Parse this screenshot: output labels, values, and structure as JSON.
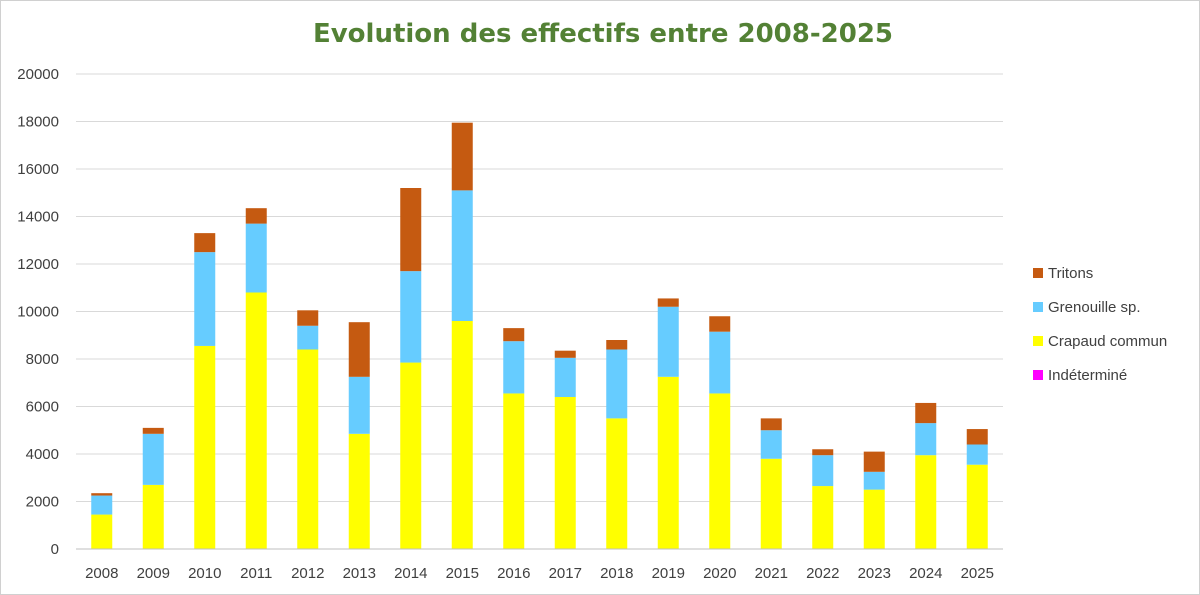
{
  "chart_data": {
    "type": "bar",
    "stacked": true,
    "title": "Evolution des effectifs entre 2008-2025",
    "xlabel": "",
    "ylabel": "",
    "ylim": [
      0,
      20000
    ],
    "yticks": [
      0,
      2000,
      4000,
      6000,
      8000,
      10000,
      12000,
      14000,
      16000,
      18000,
      20000
    ],
    "grid": true,
    "legend_position": "right",
    "categories": [
      "2008",
      "2009",
      "2010",
      "2011",
      "2012",
      "2013",
      "2014",
      "2015",
      "2016",
      "2017",
      "2018",
      "2019",
      "2020",
      "2021",
      "2022",
      "2023",
      "2024",
      "2025"
    ],
    "series": [
      {
        "name": "Indéterminé",
        "color": "#ff00ff",
        "values": [
          0,
          0,
          0,
          0,
          0,
          0,
          0,
          0,
          0,
          0,
          0,
          0,
          0,
          0,
          0,
          0,
          0,
          0
        ]
      },
      {
        "name": "Crapaud commun",
        "color": "#ffff00",
        "values": [
          1450,
          2700,
          8550,
          10800,
          8400,
          4850,
          7850,
          9600,
          6550,
          6400,
          5500,
          7250,
          6550,
          3800,
          2650,
          2500,
          3950,
          3550
        ]
      },
      {
        "name": "Grenouille sp.",
        "color": "#66ccff",
        "values": [
          800,
          2150,
          3950,
          2900,
          1000,
          2400,
          3850,
          5500,
          2200,
          1650,
          2900,
          2950,
          2600,
          1200,
          1300,
          750,
          1350,
          850
        ]
      },
      {
        "name": "Tritons",
        "color": "#c55a11",
        "values": [
          100,
          250,
          800,
          650,
          650,
          2300,
          3500,
          2850,
          550,
          300,
          400,
          350,
          650,
          500,
          250,
          850,
          850,
          650
        ]
      }
    ],
    "legend_order": [
      "Tritons",
      "Grenouille sp.",
      "Crapaud commun",
      "Indéterminé"
    ]
  }
}
